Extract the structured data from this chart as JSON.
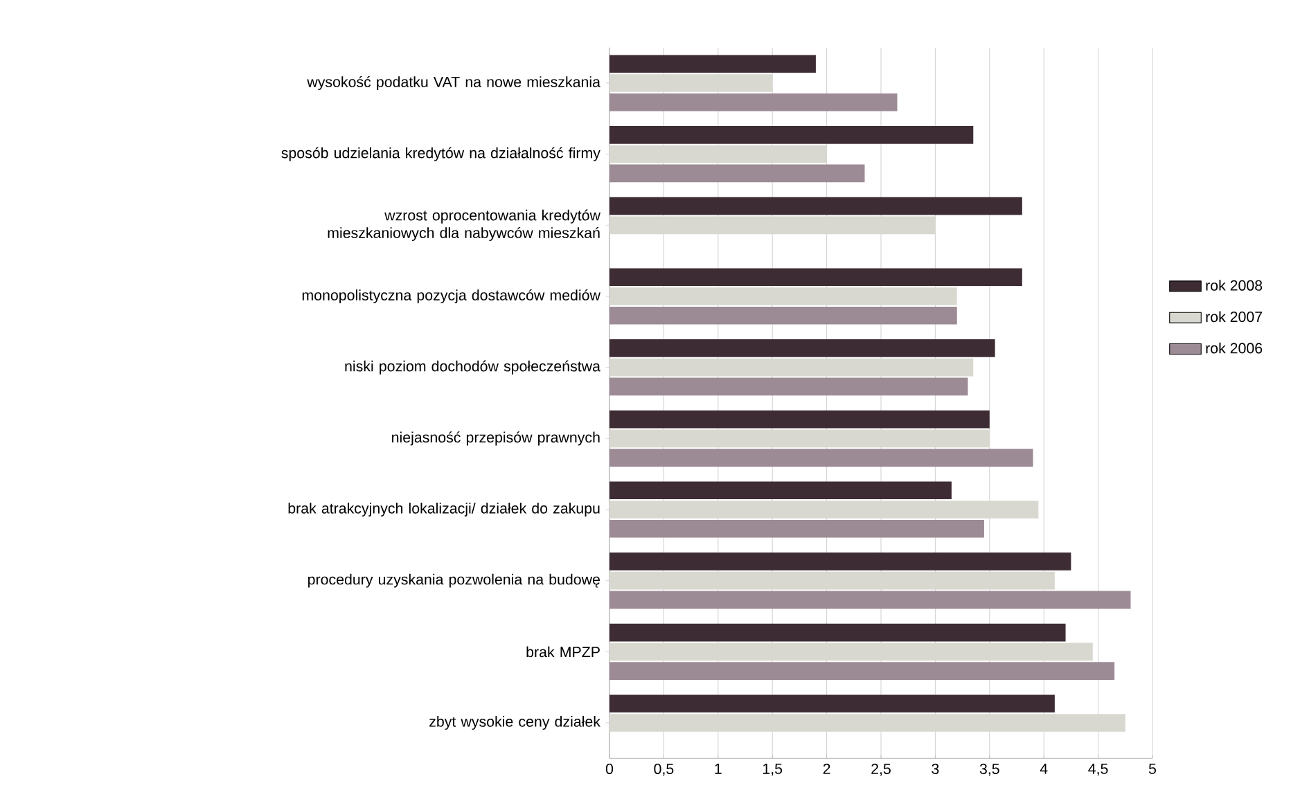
{
  "chart_data": {
    "type": "bar",
    "orientation": "horizontal",
    "categories": [
      "wysokość podatku VAT na nowe mieszkania",
      "sposób udzielania kredytów na działalność firmy",
      "wzrost oprocentowania kredytów mieszkaniowych dla nabywców mieszkań",
      "monopolistyczna pozycja dostawców mediów",
      "niski poziom dochodów społeczeństwa",
      "niejasność przepisów prawnych",
      "brak atrakcyjnych lokalizacji/ działek do zakupu",
      "procedury uzyskania pozwolenia na budowę",
      "brak MPZP",
      "zbyt wysokie ceny działek"
    ],
    "series": [
      {
        "name": "rok 2008",
        "color": "#3e2c34",
        "values": [
          1.9,
          3.35,
          3.8,
          3.8,
          3.55,
          3.5,
          3.15,
          4.25,
          4.2,
          4.1
        ]
      },
      {
        "name": "rok 2007",
        "color": "#d9d8d0",
        "values": [
          1.5,
          2.0,
          3.0,
          3.2,
          3.35,
          3.5,
          3.95,
          4.1,
          4.45,
          4.75
        ]
      },
      {
        "name": "rok 2006",
        "color": "#9c8a94",
        "values": [
          2.65,
          2.35,
          null,
          3.2,
          3.3,
          3.9,
          3.45,
          4.8,
          4.65,
          null
        ]
      }
    ],
    "xlim": [
      0,
      5
    ],
    "xticks": [
      0,
      {
        "value": 0.5,
        "label": "0,5"
      },
      1,
      {
        "value": 1.5,
        "label": "1,5"
      },
      2,
      {
        "value": 2.5,
        "label": "2,5"
      },
      3,
      {
        "value": 3.5,
        "label": "3,5"
      },
      4,
      {
        "value": 4.5,
        "label": "4,5"
      },
      5
    ],
    "grid": "x",
    "legend": "right"
  }
}
